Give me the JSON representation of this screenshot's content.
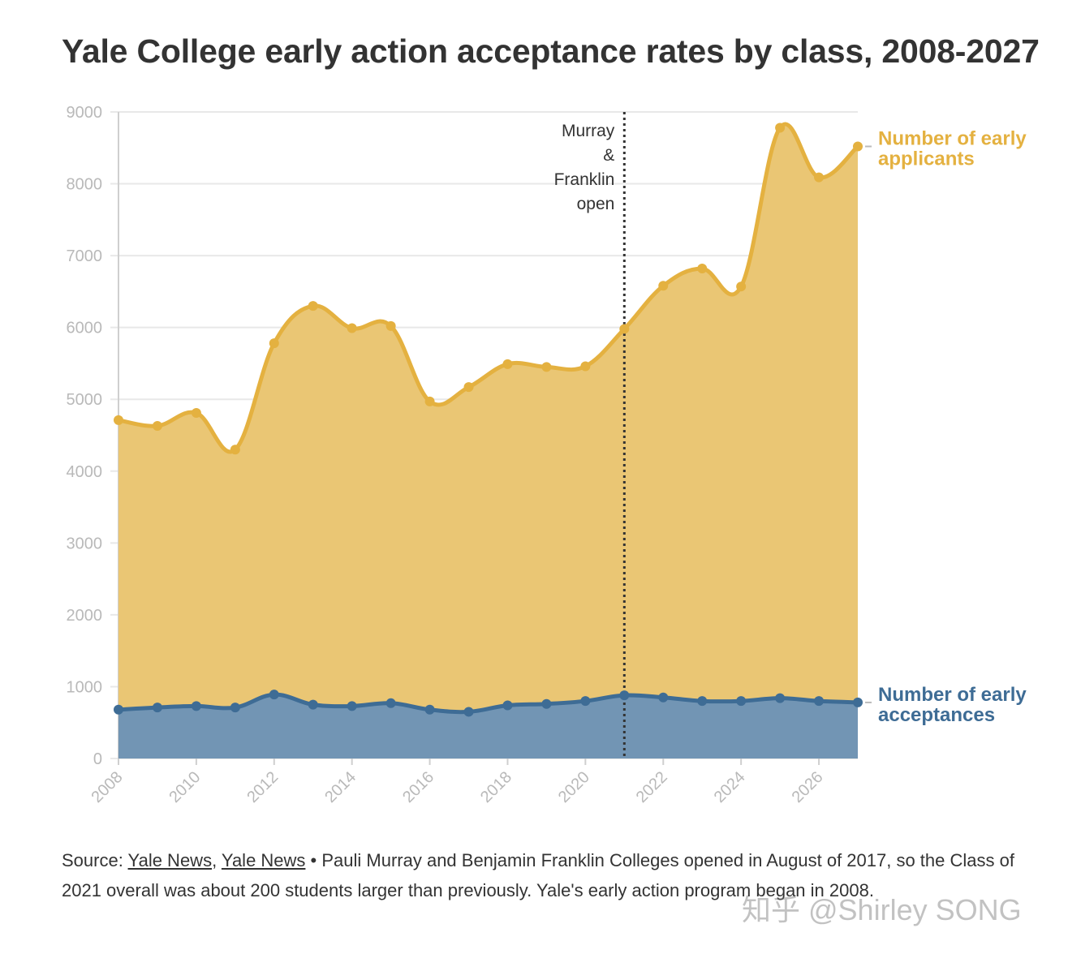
{
  "chart_data": {
    "type": "area",
    "title": "Yale College early action acceptance rates by class, 2008-2027",
    "x": [
      2008,
      2009,
      2010,
      2011,
      2012,
      2013,
      2014,
      2015,
      2016,
      2017,
      2018,
      2019,
      2020,
      2021,
      2022,
      2023,
      2024,
      2025,
      2026,
      2027
    ],
    "series": [
      {
        "name": "Number of early applicants",
        "color": "#e4b140",
        "fill": "#eac674",
        "values": [
          4710,
          4630,
          4810,
          4300,
          5780,
          6300,
          5990,
          6020,
          4970,
          5170,
          5490,
          5450,
          5460,
          5980,
          6580,
          6820,
          6570,
          8780,
          8090,
          8520
        ]
      },
      {
        "name": "Number of early acceptances",
        "color": "#3e6c95",
        "fill": "#7295b4",
        "values": [
          680,
          710,
          730,
          710,
          890,
          750,
          730,
          770,
          680,
          650,
          740,
          760,
          800,
          880,
          850,
          800,
          800,
          840,
          800,
          780
        ]
      }
    ],
    "yticks": [
      0,
      1000,
      2000,
      3000,
      4000,
      5000,
      6000,
      7000,
      8000,
      9000
    ],
    "xticks": [
      2008,
      2010,
      2012,
      2014,
      2016,
      2018,
      2020,
      2022,
      2024,
      2026
    ],
    "xlim": [
      2008,
      2027
    ],
    "ylim": [
      0,
      9000
    ],
    "grid": true,
    "annotation": {
      "x": 2021,
      "lines": [
        "Murray",
        "&",
        "Franklin",
        "open"
      ]
    }
  },
  "footer": {
    "prefix": "Source: ",
    "link1": "Yale News",
    "sep": ", ",
    "link2": "Yale News",
    "note": " • Pauli Murray and Benjamin Franklin Colleges opened in August of 2017, so the Class of 2021 overall was about 200 students larger than previously. Yale's early action program began in 2008."
  },
  "watermark": "知乎 @Shirley SONG"
}
